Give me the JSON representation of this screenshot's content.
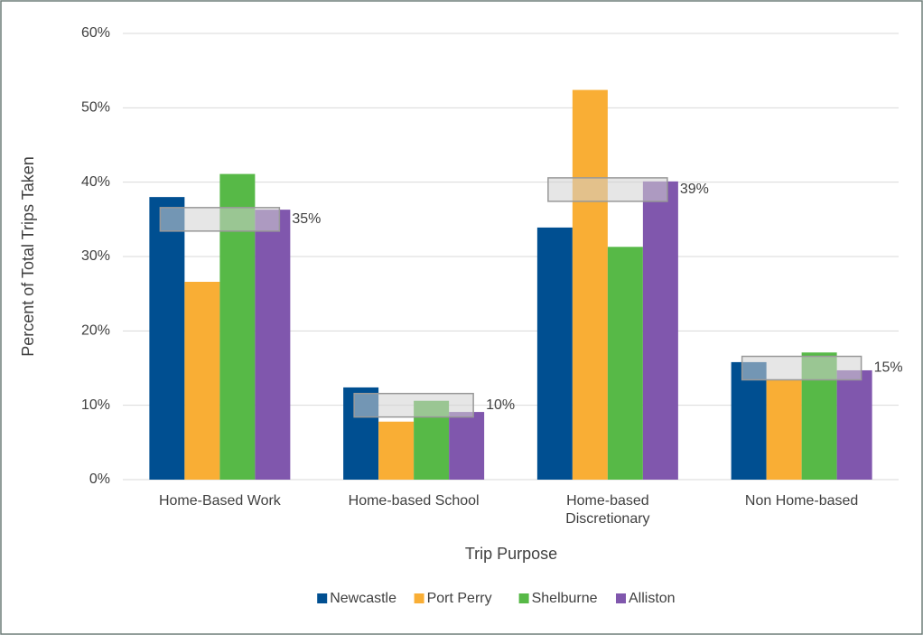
{
  "chart_data": {
    "type": "bar",
    "x_label": "Trip Purpose",
    "y_label": "Percent of Total Trips Taken",
    "categories": [
      "Home-Based Work",
      "Home-based School",
      "Home-based Discretionary",
      "Non Home-based"
    ],
    "series": [
      {
        "name": "Newcastle",
        "color": "#004f91",
        "values": [
          38.0,
          12.4,
          33.9,
          15.8
        ]
      },
      {
        "name": "Port Perry",
        "color": "#f9ae35",
        "values": [
          26.6,
          7.8,
          52.4,
          13.4
        ]
      },
      {
        "name": "Shelburne",
        "color": "#57b947",
        "values": [
          41.1,
          10.6,
          31.3,
          17.1
        ]
      },
      {
        "name": "Alliston",
        "color": "#8057ad",
        "values": [
          36.3,
          9.1,
          40.1,
          14.7
        ]
      }
    ],
    "markers": {
      "values": [
        35,
        10,
        39,
        15
      ],
      "value_labels": [
        "35%",
        "10%",
        "39%",
        "15%"
      ]
    },
    "ylim": [
      0,
      60
    ],
    "yticks": [
      {
        "value": 0,
        "label": "0%"
      },
      {
        "value": 10,
        "label": "10%"
      },
      {
        "value": 20,
        "label": "20%"
      },
      {
        "value": 30,
        "label": "30%"
      },
      {
        "value": 40,
        "label": "40%"
      },
      {
        "value": 50,
        "label": "50%"
      },
      {
        "value": 60,
        "label": "60%"
      }
    ],
    "grid": true,
    "legend": "bottom"
  }
}
